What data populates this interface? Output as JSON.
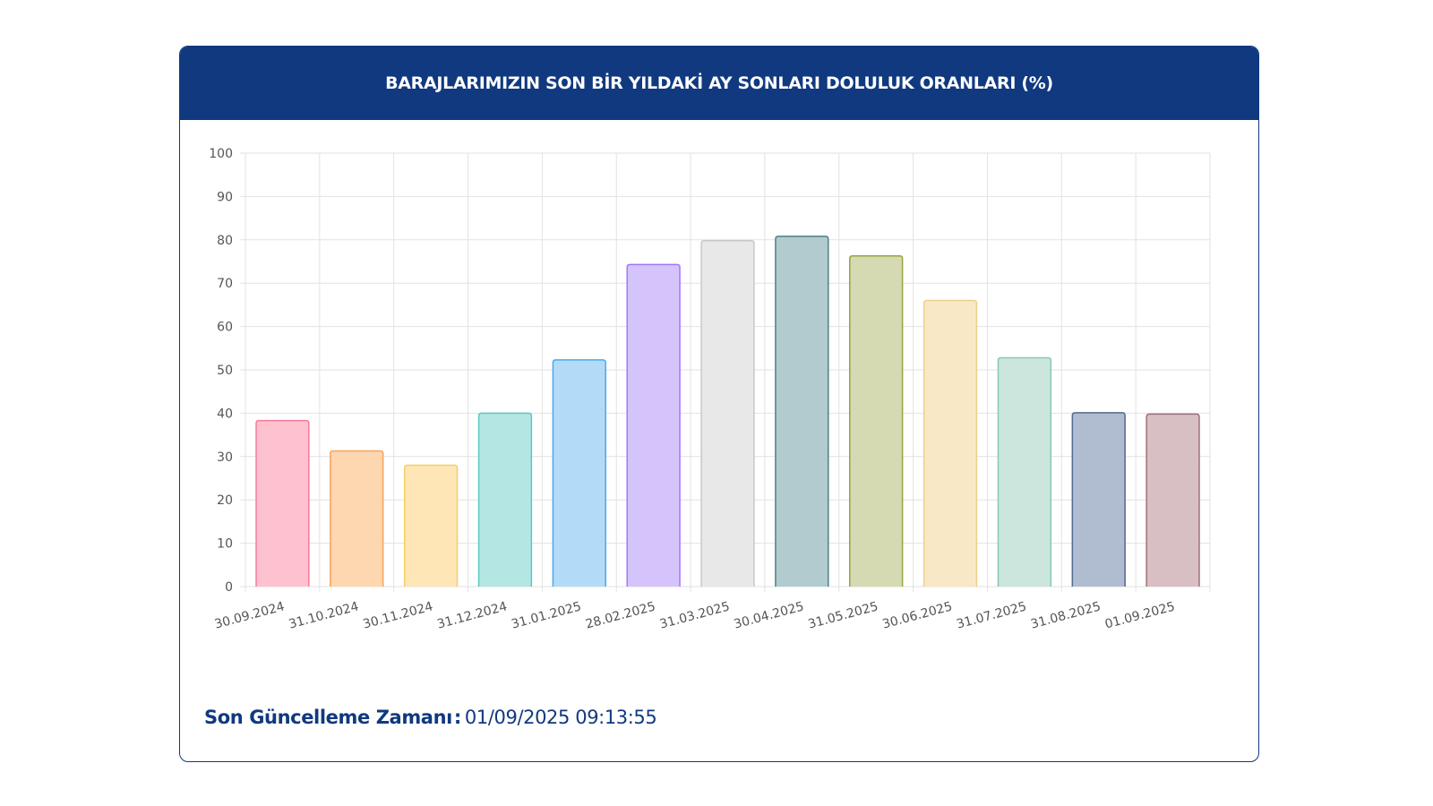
{
  "title": "BARAJLARIMIZIN SON BİR YILDAKİ AY SONLARI DOLULUK ORANLARI (%)",
  "update": {
    "label": "Son Güncelleme Zamanı",
    "separator": ":",
    "value": "01/09/2025 09:13:55"
  },
  "colors": {
    "header": "#10397f",
    "grid": "#e2e2e2",
    "axis_text": "#555555"
  },
  "chart_data": {
    "type": "bar",
    "title": "",
    "xlabel": "",
    "ylabel": "",
    "ylim": [
      0,
      100
    ],
    "yticks": [
      0,
      10,
      20,
      30,
      40,
      50,
      60,
      70,
      80,
      90,
      100
    ],
    "grid": true,
    "legend": "none",
    "categories": [
      "30.09.2024",
      "31.10.2024",
      "30.11.2024",
      "31.12.2024",
      "31.01.2025",
      "28.02.2025",
      "31.03.2025",
      "30.04.2025",
      "31.05.2025",
      "30.06.2025",
      "31.07.2025",
      "31.08.2025",
      "01.09.2025"
    ],
    "values": [
      38.3,
      31.3,
      28.0,
      40.0,
      52.3,
      74.3,
      79.8,
      80.8,
      76.3,
      66.0,
      52.8,
      40.1,
      39.8
    ],
    "fills": [
      "#fdc1cf",
      "#fed6b0",
      "#fee6b6",
      "#b4e6e4",
      "#b3dbf8",
      "#d5c4fb",
      "#e8e8e9",
      "#b2cbcf",
      "#d6dab3",
      "#f8e8c6",
      "#cce6de",
      "#b0bccf",
      "#d8bfc4"
    ],
    "strokes": [
      "#f77b97",
      "#f9a35a",
      "#f6cd66",
      "#5cc9c1",
      "#49a9ee",
      "#a275fb",
      "#c8c8cc",
      "#4e7f86",
      "#98a240",
      "#efd08a",
      "#86c9b0",
      "#506b91",
      "#9e6f79"
    ]
  }
}
